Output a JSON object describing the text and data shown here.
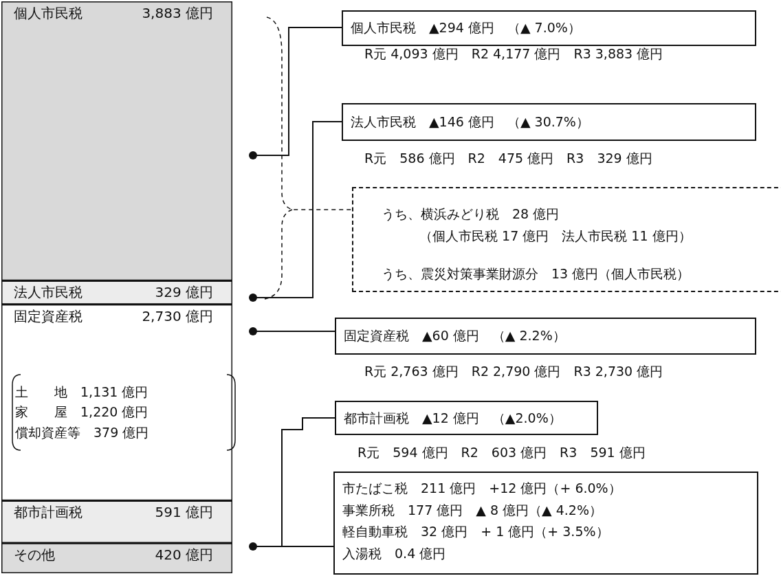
{
  "chart_data": {
    "type": "bar",
    "stacked": true,
    "categories": [
      null
    ],
    "series": [
      {
        "name": "その他",
        "color": "#dcdcdc",
        "values": [
          420
        ],
        "value_labels": [
          "420 億円"
        ]
      },
      {
        "name": "都市計画税",
        "color": "#ececec",
        "values": [
          591
        ],
        "value_labels": [
          "591 億円"
        ]
      },
      {
        "name": "固定資産税",
        "color": "#ffffff",
        "values": [
          2730
        ],
        "value_labels": [
          "2,730 億円"
        ]
      },
      {
        "name": "法人市民税",
        "color": "#ececec",
        "values": [
          329
        ],
        "value_labels": [
          "329 億円"
        ]
      },
      {
        "name": "個人市民税",
        "color": "#d9d9d9",
        "values": [
          3883
        ],
        "value_labels": [
          "3,883 億円"
        ]
      }
    ],
    "annotations": [
      "個人市民税　▲294 億円　（▲ 7.0%）",
      "R元 4,093 億円　R2 4,177 億円　R3 3,883 億円",
      "法人市民税　▲146 億円　（▲ 30.7%）",
      "R元　586 億円　R2　475 億円　R3　329 億円",
      "うち、横浜みどり税　28 億円",
      "（個人市民税 17 億円　法人市民税 11 億円）",
      "うち、震災対策事業財源分　13 億円（個人市民税）",
      "固定資産税　▲60 億円　（▲ 2.2%）",
      "R元 2,763 億円　R2 2,790 億円　R3 2,730 億円",
      "都市計画税　▲12 億円　（▲2.0%）",
      "R元　594 億円　R2　603 億円　R3　591 億円",
      "市たばこ税　211 億円　+12 億円（+ 6.0%）",
      "事業所税　177 億円　▲ 8 億円（▲ 4.2%）",
      "軽自動車税　32 億円　+ 1 億円（+ 3.5%）",
      "入湯税　0.4 億円",
      "土　　地　1,131 億円",
      "家　　屋　1,220 億円",
      "償却資産等　379 億円"
    ]
  }
}
